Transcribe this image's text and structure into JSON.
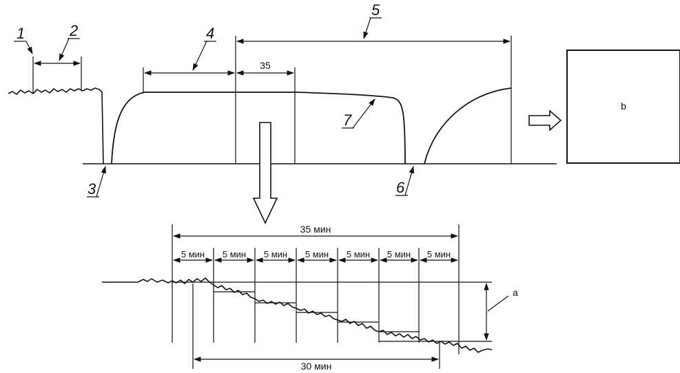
{
  "callouts": {
    "c1": "1",
    "c2": "2",
    "c3": "3",
    "c4": "4",
    "c5": "5",
    "c6": "6",
    "c7": "7"
  },
  "top_dimension": "35",
  "box_label": "b",
  "detail": {
    "total_label": "35 мин",
    "intervals": [
      "5 мин",
      "5 мин",
      "5 мин",
      "5 мин",
      "5 мин",
      "5 мин",
      "5 мин"
    ],
    "bottom_label": "30 мин",
    "drift_label": "a"
  }
}
